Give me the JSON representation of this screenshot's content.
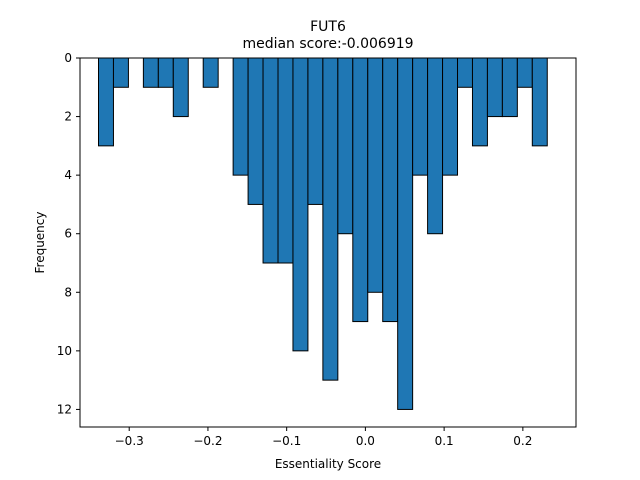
{
  "chart_data": {
    "type": "bar",
    "title": "FUT6",
    "subtitle": "median score:-0.006919",
    "xlabel": "Essentiality Score",
    "ylabel": "Frequency",
    "xlim": [
      -0.3625,
      0.2675
    ],
    "ylim": [
      0,
      12.6
    ],
    "y_inverted": true,
    "grid": false,
    "bar_color": "#1f77b4",
    "edge_color": "#000000",
    "x_ticks": [
      -0.3,
      -0.2,
      -0.1,
      0.0,
      0.1,
      0.2
    ],
    "x_tick_labels": [
      "−0.3",
      "−0.2",
      "−0.1",
      "0.0",
      "0.1",
      "0.2"
    ],
    "y_ticks": [
      0,
      2,
      4,
      6,
      8,
      10,
      12
    ],
    "y_tick_labels": [
      "0",
      "2",
      "4",
      "6",
      "8",
      "10",
      "12"
    ],
    "bin_width": 0.019,
    "bins": [
      {
        "x": -0.3295,
        "value": 3
      },
      {
        "x": -0.3105,
        "value": 1
      },
      {
        "x": -0.2915,
        "value": 0
      },
      {
        "x": -0.2725,
        "value": 1
      },
      {
        "x": -0.2535,
        "value": 1
      },
      {
        "x": -0.2345,
        "value": 2
      },
      {
        "x": -0.2155,
        "value": 0
      },
      {
        "x": -0.1965,
        "value": 1
      },
      {
        "x": -0.1775,
        "value": 0
      },
      {
        "x": -0.1585,
        "value": 4
      },
      {
        "x": -0.1395,
        "value": 5
      },
      {
        "x": -0.1205,
        "value": 7
      },
      {
        "x": -0.1015,
        "value": 7
      },
      {
        "x": -0.0825,
        "value": 10
      },
      {
        "x": -0.0635,
        "value": 5
      },
      {
        "x": -0.0445,
        "value": 11
      },
      {
        "x": -0.0255,
        "value": 6
      },
      {
        "x": -0.0065,
        "value": 9
      },
      {
        "x": 0.0125,
        "value": 8
      },
      {
        "x": 0.0315,
        "value": 9
      },
      {
        "x": 0.0505,
        "value": 12
      },
      {
        "x": 0.0695,
        "value": 4
      },
      {
        "x": 0.0885,
        "value": 6
      },
      {
        "x": 0.1075,
        "value": 4
      },
      {
        "x": 0.1265,
        "value": 1
      },
      {
        "x": 0.1455,
        "value": 3
      },
      {
        "x": 0.1645,
        "value": 2
      },
      {
        "x": 0.1835,
        "value": 2
      },
      {
        "x": 0.2025,
        "value": 1
      },
      {
        "x": 0.2215,
        "value": 3
      }
    ]
  }
}
